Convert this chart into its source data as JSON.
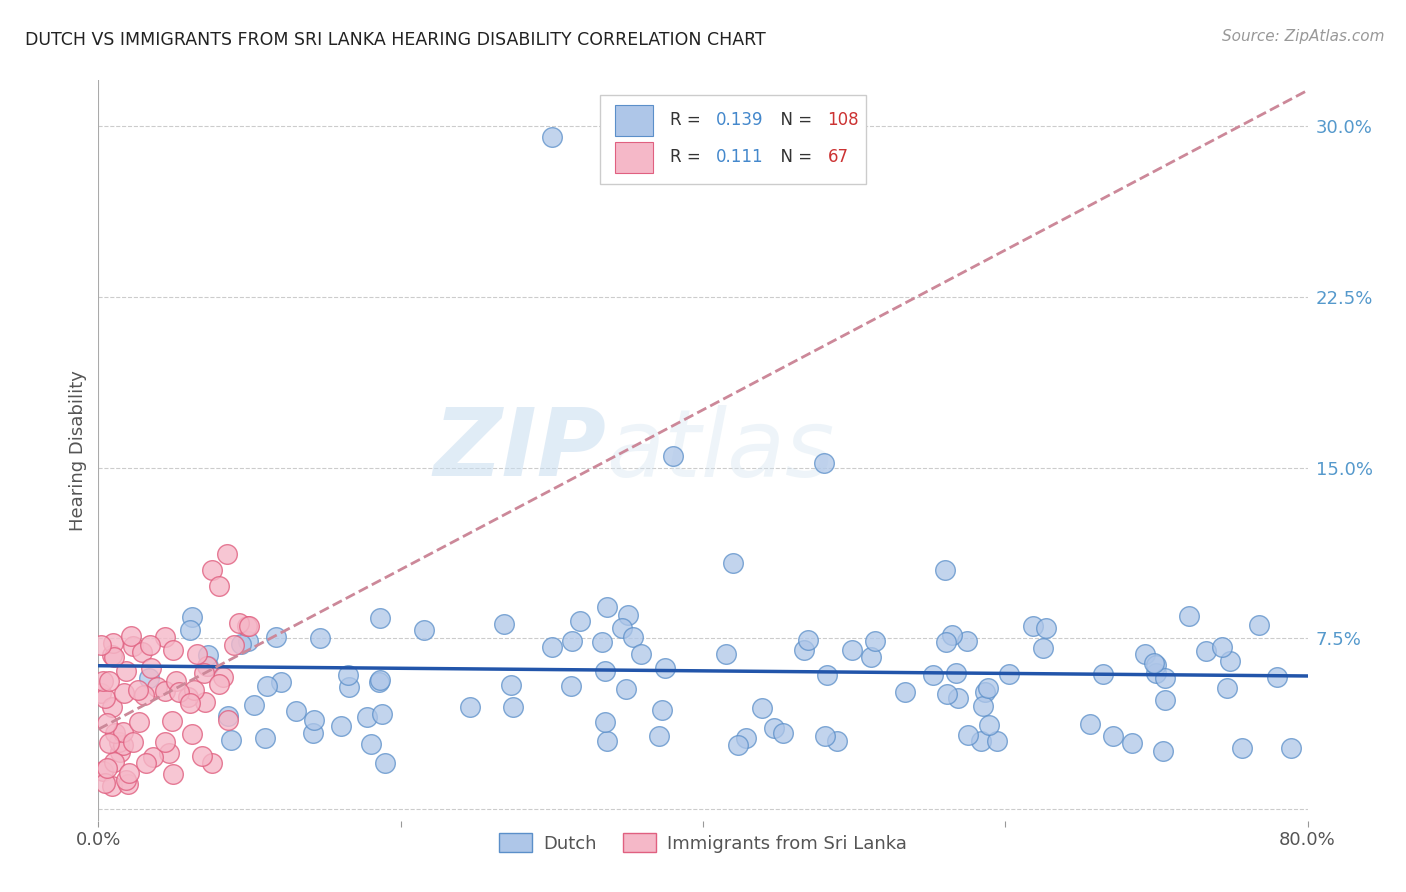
{
  "title": "DUTCH VS IMMIGRANTS FROM SRI LANKA HEARING DISABILITY CORRELATION CHART",
  "source": "Source: ZipAtlas.com",
  "ylabel": "Hearing Disability",
  "xlim": [
    0.0,
    0.8
  ],
  "ylim": [
    -0.005,
    0.32
  ],
  "xticks": [
    0.0,
    0.2,
    0.4,
    0.6,
    0.8
  ],
  "xtick_labels": [
    "0.0%",
    "",
    "",
    "",
    "80.0%"
  ],
  "yticks": [
    0.0,
    0.075,
    0.15,
    0.225,
    0.3
  ],
  "ytick_labels": [
    "",
    "7.5%",
    "15.0%",
    "22.5%",
    "30.0%"
  ],
  "dutch_color": "#aec6e8",
  "dutch_edge_color": "#5b8fc9",
  "srilanka_color": "#f5b8c8",
  "srilanka_edge_color": "#e06080",
  "dutch_R": 0.139,
  "dutch_N": 108,
  "srilanka_R": 0.111,
  "srilanka_N": 67,
  "trend_dutch_color": "#2255aa",
  "trend_srilanka_color": "#cc8899",
  "watermark_zip": "ZIP",
  "watermark_atlas": "atlas",
  "legend_dutch_label": "Dutch",
  "legend_srilanka_label": "Immigrants from Sri Lanka"
}
